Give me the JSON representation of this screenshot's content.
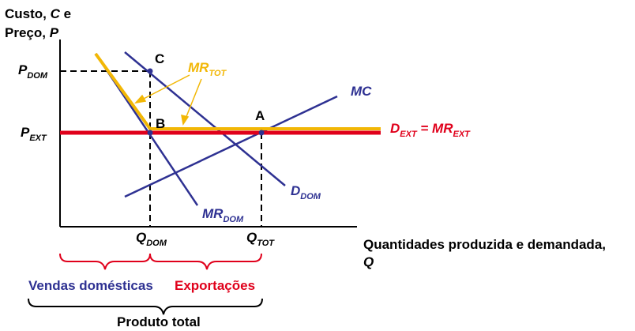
{
  "axes": {
    "y_label_line1": "Custo,",
    "y_label_c": "C",
    "y_label_e": "e",
    "y_label_line2": "Preço,",
    "y_label_p": "P",
    "x_label_line1": "Quantidades produzida e demandada,",
    "x_label_line2": "Q"
  },
  "ticks": {
    "p_dom": {
      "main": "P",
      "sub": "DOM"
    },
    "p_ext": {
      "main": "P",
      "sub": "EXT"
    },
    "q_dom": {
      "main": "Q",
      "sub": "DOM"
    },
    "q_tot": {
      "main": "Q",
      "sub": "TOT"
    }
  },
  "curves": {
    "mc": "MC",
    "d_dom": {
      "main": "D",
      "sub": "DOM"
    },
    "mr_dom": {
      "main": "MR",
      "sub": "DOM"
    },
    "mr_tot": {
      "main": "MR",
      "sub": "TOT"
    },
    "d_ext": {
      "main": "D",
      "sub": "EXT",
      "eq": " = MR",
      "sub2": "EXT"
    }
  },
  "points": {
    "a": "A",
    "b": "B",
    "c": "C"
  },
  "brackets": {
    "domestic": "Vendas domésticas",
    "exports": "Exportações",
    "total": "Produto total"
  },
  "colors": {
    "blue": "#2e3192",
    "red": "#e0001b",
    "gold": "#f2b705",
    "black": "#000000"
  }
}
